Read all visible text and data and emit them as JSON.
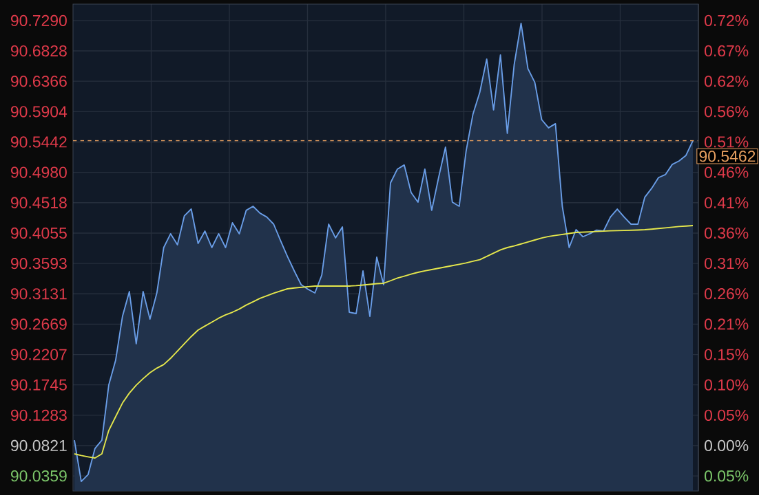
{
  "chart_data": {
    "type": "line",
    "categories": [
      null,
      null,
      null,
      null,
      null,
      null,
      null,
      null,
      null,
      null,
      null,
      null,
      null,
      null,
      null,
      null,
      null,
      null,
      null,
      null,
      null,
      null,
      null,
      null,
      null,
      null,
      null,
      null,
      null,
      null,
      null,
      null,
      null,
      null,
      null,
      null,
      null,
      null,
      null,
      null,
      null,
      null,
      null,
      null,
      null,
      null,
      null,
      null,
      null,
      null,
      null,
      null,
      null,
      null,
      null,
      null,
      null,
      null,
      null,
      null,
      null,
      null,
      null,
      null,
      null,
      null,
      null,
      null,
      null,
      null,
      null,
      null,
      null,
      null,
      null,
      null,
      null,
      null,
      null,
      null,
      null,
      null,
      null,
      null,
      null,
      null,
      null,
      null,
      null,
      null,
      null
    ],
    "series": [
      {
        "type": "area",
        "color": "#6a9ee8",
        "values": [
          90.0904,
          90.0276,
          90.038,
          90.0778,
          90.0904,
          90.1741,
          90.2118,
          90.2788,
          90.3165,
          90.237,
          90.3165,
          90.2746,
          90.3144,
          90.3835,
          90.4045,
          90.3877,
          90.4317,
          90.4421,
          90.3898,
          90.4086,
          90.3835,
          90.4045,
          90.3835,
          90.4212,
          90.4045,
          90.4401,
          90.4463,
          90.4359,
          90.43,
          90.4191,
          90.394,
          90.37,
          90.3479,
          90.327,
          90.32,
          90.3144,
          90.3416,
          90.4191,
          90.3982,
          90.4149,
          90.2851,
          90.283,
          90.3479,
          90.2788,
          90.3689,
          90.327,
          90.4819,
          90.5029,
          90.5092,
          90.4673,
          90.4526,
          90.5029,
          90.4401,
          90.49,
          90.5364,
          90.4526,
          90.4463,
          90.5301,
          90.5866,
          90.6201,
          90.6704,
          90.5929,
          90.6767,
          90.5573,
          90.662,
          90.7248,
          90.6557,
          90.6348,
          90.5782,
          90.5657,
          90.572,
          90.4463,
          90.3835,
          90.4107,
          90.4,
          90.4045,
          90.41,
          90.4086,
          90.43,
          90.4421,
          90.43,
          90.4191,
          90.4191,
          90.46,
          90.4736,
          90.49,
          90.4945,
          90.51,
          90.5154,
          90.5238,
          90.5462
        ]
      },
      {
        "color": "#e6e84c",
        "values": [
          90.0695,
          90.067,
          90.065,
          90.0632,
          90.0695,
          90.105,
          90.126,
          90.1469,
          90.162,
          90.1741,
          90.184,
          90.193,
          90.2,
          90.2055,
          90.215,
          90.226,
          90.237,
          90.248,
          90.2579,
          90.264,
          90.27,
          90.276,
          90.281,
          90.2851,
          90.29,
          90.296,
          90.301,
          90.3061,
          90.31,
          90.314,
          90.3175,
          90.3207,
          90.322,
          90.323,
          90.324,
          90.3249,
          90.3249,
          90.3249,
          90.3249,
          90.3249,
          90.3249,
          90.3255,
          90.3265,
          90.3275,
          90.3285,
          90.3291,
          90.333,
          90.337,
          90.34,
          90.343,
          90.3458,
          90.348,
          90.35,
          90.352,
          90.354,
          90.356,
          90.358,
          90.36,
          90.3626,
          90.365,
          90.37,
          90.375,
          90.38,
          90.3835,
          90.386,
          90.389,
          90.392,
          90.395,
          90.398,
          90.4003,
          90.402,
          90.4035,
          90.405,
          90.4065,
          90.407,
          90.4075,
          90.408,
          90.4085,
          90.409,
          90.4093,
          90.4096,
          90.4099,
          90.4102,
          90.4107,
          90.4115,
          90.4125,
          90.4135,
          90.4145,
          90.4155,
          90.4162,
          90.417
        ]
      }
    ],
    "ylim": [
      90.013,
      90.754
    ],
    "yticks": [
      {
        "value": 90.0359,
        "label": "90.0359"
      },
      {
        "value": 90.0821,
        "label": "90.0821"
      },
      {
        "value": 90.1283,
        "label": "90.1283"
      },
      {
        "value": 90.1745,
        "label": "90.1745"
      },
      {
        "value": 90.2207,
        "label": "90.2207"
      },
      {
        "value": 90.2669,
        "label": "90.2669"
      },
      {
        "value": 90.3131,
        "label": "90.3131"
      },
      {
        "value": 90.3593,
        "label": "90.3593"
      },
      {
        "value": 90.4055,
        "label": "90.4055"
      },
      {
        "value": 90.4518,
        "label": "90.4518"
      },
      {
        "value": 90.498,
        "label": "90.4980"
      },
      {
        "value": 90.5442,
        "label": "90.5442"
      },
      {
        "value": 90.5904,
        "label": "90.5904"
      },
      {
        "value": 90.6366,
        "label": "90.6366"
      },
      {
        "value": 90.6828,
        "label": "90.6828"
      },
      {
        "value": 90.729,
        "label": "90.7290"
      }
    ],
    "y2lim": [
      -0.0767,
      0.7459
    ],
    "y2ticks": [
      {
        "value": -0.0513,
        "label": "0.05%"
      },
      {
        "value": 0,
        "label": "0.00%"
      },
      {
        "value": 0.0513,
        "label": "0.05%"
      },
      {
        "value": 0.1026,
        "label": "0.10%"
      },
      {
        "value": 0.1539,
        "label": "0.15%"
      },
      {
        "value": 0.2052,
        "label": "0.21%"
      },
      {
        "value": 0.2565,
        "label": "0.26%"
      },
      {
        "value": 0.3078,
        "label": "0.31%"
      },
      {
        "value": 0.3591,
        "label": "0.36%"
      },
      {
        "value": 0.4104,
        "label": "0.41%"
      },
      {
        "value": 0.4617,
        "label": "0.46%"
      },
      {
        "value": 0.513,
        "label": "0.51%"
      },
      {
        "value": 0.5643,
        "label": "0.56%"
      },
      {
        "value": 0.6156,
        "label": "0.62%"
      },
      {
        "value": 0.6669,
        "label": "0.67%"
      },
      {
        "value": 0.7182,
        "label": "0.72%"
      }
    ],
    "grid": true,
    "ref_lines": [
      {
        "axis": "y",
        "value": 90.5462,
        "label": "90.5462",
        "color": "#e8a060",
        "line_style": "dashed"
      }
    ]
  }
}
